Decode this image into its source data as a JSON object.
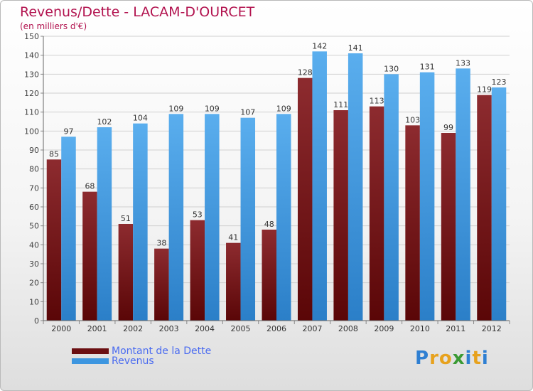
{
  "header": {
    "title": "Revenus/Dette - LACAM-D'OURCET",
    "subtitle": "(en milliers d'€)"
  },
  "chart_data": {
    "type": "bar",
    "title": "Revenus/Dette - LACAM-D'OURCET",
    "subtitle": "(en milliers d'€)",
    "categories": [
      "2000",
      "2001",
      "2002",
      "2003",
      "2004",
      "2005",
      "2006",
      "2007",
      "2008",
      "2009",
      "2010",
      "2011",
      "2012"
    ],
    "series": [
      {
        "name": "Montant de la Dette",
        "color": "#7a1c1f",
        "values": [
          85,
          68,
          51,
          38,
          53,
          41,
          48,
          128,
          111,
          113,
          103,
          99,
          119
        ]
      },
      {
        "name": "Revenus",
        "color": "#3d96e0",
        "values": [
          97,
          102,
          104,
          109,
          109,
          107,
          109,
          142,
          141,
          130,
          131,
          133,
          123
        ]
      }
    ],
    "yticks": [
      0,
      10,
      20,
      30,
      40,
      50,
      60,
      70,
      80,
      90,
      100,
      110,
      120,
      130,
      140,
      150
    ],
    "ylim": [
      0,
      150
    ],
    "grid": true,
    "legend_position": "bottom-left"
  },
  "legend": {
    "items": [
      {
        "label": "Montant de la Dette",
        "color": "#6b0f12"
      },
      {
        "label": "Revenus",
        "color": "#3d96e0"
      }
    ]
  },
  "logo": {
    "letters": [
      "P",
      "r",
      "o",
      "x",
      "i",
      "t",
      "i"
    ],
    "colors": [
      "#2e7fd2",
      "#e7a21e",
      "#e7a21e",
      "#3a9a34",
      "#2e7fd2",
      "#e7a21e",
      "#2e7fd2"
    ]
  }
}
